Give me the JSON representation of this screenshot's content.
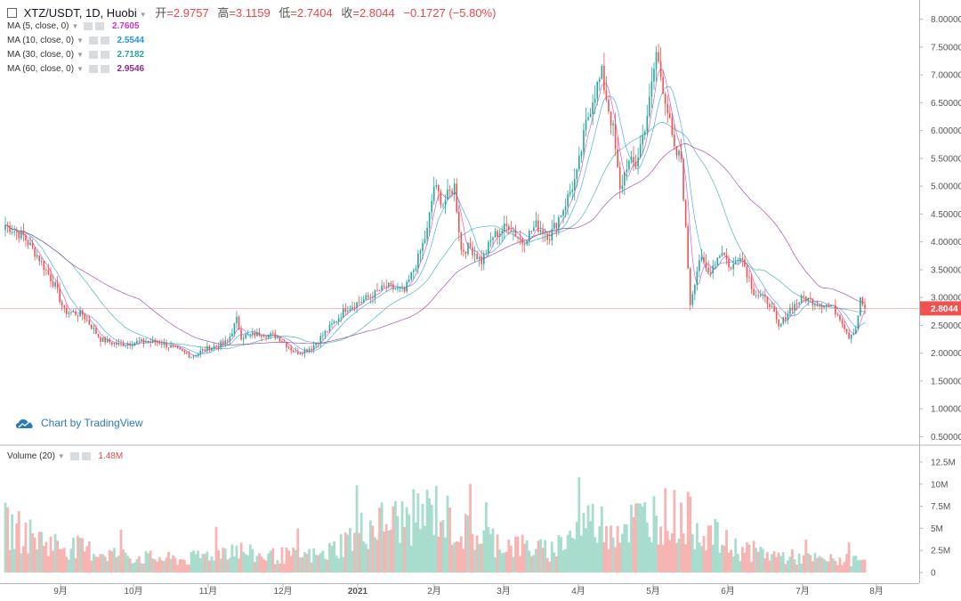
{
  "header": {
    "symbol": "XTZ/USDT, 1D, Huobi",
    "open_label": "开",
    "open": "=2.9757",
    "high_label": "高",
    "high": "=3.1159",
    "low_label": "低",
    "low": "=2.7404",
    "close_label": "收",
    "close": "=2.8044",
    "change": "−0.1727 (−5.80%)"
  },
  "indicators": [
    {
      "label": "MA (5, close, 0)",
      "value": "2.7605",
      "color": "#cc33cc"
    },
    {
      "label": "MA (10, close, 0)",
      "value": "2.5544",
      "color": "#2196f3"
    },
    {
      "label": "MA (30, close, 0)",
      "value": "2.7182",
      "color": "#26a69a"
    },
    {
      "label": "MA (60, close, 0)",
      "value": "2.9546",
      "color": "#8e2a8e"
    }
  ],
  "volume_indicator": {
    "label": "Volume (20)",
    "value": "1.48M"
  },
  "branding": {
    "text": "Chart by TradingView"
  },
  "colors": {
    "up": "#26a69a",
    "down": "#ef5350",
    "up_vol": "#a8dccd",
    "down_vol": "#f6b4b3",
    "last_price_bg": "#ef5350"
  },
  "chart_data": {
    "type": "candlestick",
    "price_axis": {
      "ticks": [
        "8.00000",
        "7.50000",
        "7.00000",
        "6.50000",
        "6.00000",
        "5.50000",
        "5.00000",
        "4.50000",
        "4.00000",
        "3.50000",
        "3.00000",
        "2.50000",
        "2.00000",
        "1.50000",
        "1.00000",
        "0.50000"
      ],
      "ylim": [
        0.25,
        8.25
      ]
    },
    "last_price": "2.8044",
    "volume_axis": {
      "ticks": [
        "12.5M",
        "10M",
        "7.5M",
        "5M",
        "2.5M",
        "0"
      ],
      "ylim": [
        0,
        13
      ]
    },
    "x_axis": {
      "ticks": [
        "9月",
        "10月",
        "11月",
        "12月",
        "2021",
        "2月",
        "3月",
        "4月",
        "5月",
        "6月",
        "7月",
        "8月"
      ]
    },
    "close_anchors": [
      [
        0,
        4.3
      ],
      [
        8,
        4.1
      ],
      [
        15,
        3.7
      ],
      [
        22,
        3.2
      ],
      [
        26,
        2.75
      ],
      [
        34,
        2.7
      ],
      [
        42,
        2.25
      ],
      [
        50,
        2.15
      ],
      [
        58,
        2.2
      ],
      [
        68,
        2.2
      ],
      [
        76,
        2.05
      ],
      [
        82,
        1.95
      ],
      [
        90,
        2.1
      ],
      [
        98,
        2.2
      ],
      [
        102,
        2.6
      ],
      [
        104,
        2.3
      ],
      [
        112,
        2.35
      ],
      [
        120,
        2.3
      ],
      [
        128,
        2.0
      ],
      [
        135,
        2.1
      ],
      [
        145,
        2.55
      ],
      [
        150,
        2.8
      ],
      [
        160,
        3.0
      ],
      [
        168,
        3.2
      ],
      [
        176,
        3.1
      ],
      [
        182,
        3.7
      ],
      [
        186,
        4.2
      ],
      [
        189,
        5.0
      ],
      [
        193,
        4.7
      ],
      [
        198,
        5.0
      ],
      [
        201,
        3.85
      ],
      [
        205,
        3.9
      ],
      [
        210,
        3.65
      ],
      [
        215,
        4.1
      ],
      [
        222,
        4.3
      ],
      [
        228,
        4.0
      ],
      [
        234,
        4.3
      ],
      [
        240,
        4.1
      ],
      [
        246,
        4.6
      ],
      [
        252,
        5.2
      ],
      [
        256,
        6.1
      ],
      [
        259,
        6.6
      ],
      [
        263,
        7.0
      ],
      [
        268,
        6.0
      ],
      [
        271,
        4.9
      ],
      [
        274,
        5.4
      ],
      [
        278,
        5.4
      ],
      [
        281,
        5.9
      ],
      [
        284,
        6.5
      ],
      [
        287,
        7.4
      ],
      [
        291,
        6.6
      ],
      [
        295,
        5.6
      ],
      [
        298,
        5.5
      ],
      [
        302,
        2.9
      ],
      [
        306,
        3.7
      ],
      [
        310,
        3.45
      ],
      [
        316,
        3.85
      ],
      [
        320,
        3.5
      ],
      [
        324,
        3.8
      ],
      [
        330,
        3.1
      ],
      [
        337,
        2.9
      ],
      [
        341,
        2.45
      ],
      [
        346,
        2.8
      ],
      [
        352,
        3.0
      ],
      [
        358,
        2.9
      ],
      [
        364,
        2.85
      ],
      [
        368,
        2.65
      ],
      [
        372,
        2.3
      ],
      [
        375,
        2.45
      ],
      [
        377,
        2.95
      ],
      [
        379,
        2.8044
      ]
    ],
    "ma_series": [
      "MA 5",
      "MA 10",
      "MA 30",
      "MA 60"
    ],
    "volume_anchors": [
      [
        0,
        5.5
      ],
      [
        20,
        3.5
      ],
      [
        40,
        2.5
      ],
      [
        60,
        1.8
      ],
      [
        80,
        1.5
      ],
      [
        100,
        3.0
      ],
      [
        110,
        2.0
      ],
      [
        140,
        2.0
      ],
      [
        160,
        5.5
      ],
      [
        180,
        6.5
      ],
      [
        190,
        7.5
      ],
      [
        200,
        5.0
      ],
      [
        220,
        3.5
      ],
      [
        240,
        2.5
      ],
      [
        256,
        6.0
      ],
      [
        270,
        5.5
      ],
      [
        287,
        7.0
      ],
      [
        300,
        6.5
      ],
      [
        320,
        3.0
      ],
      [
        340,
        2.0
      ],
      [
        360,
        1.5
      ],
      [
        379,
        1.48
      ]
    ]
  }
}
